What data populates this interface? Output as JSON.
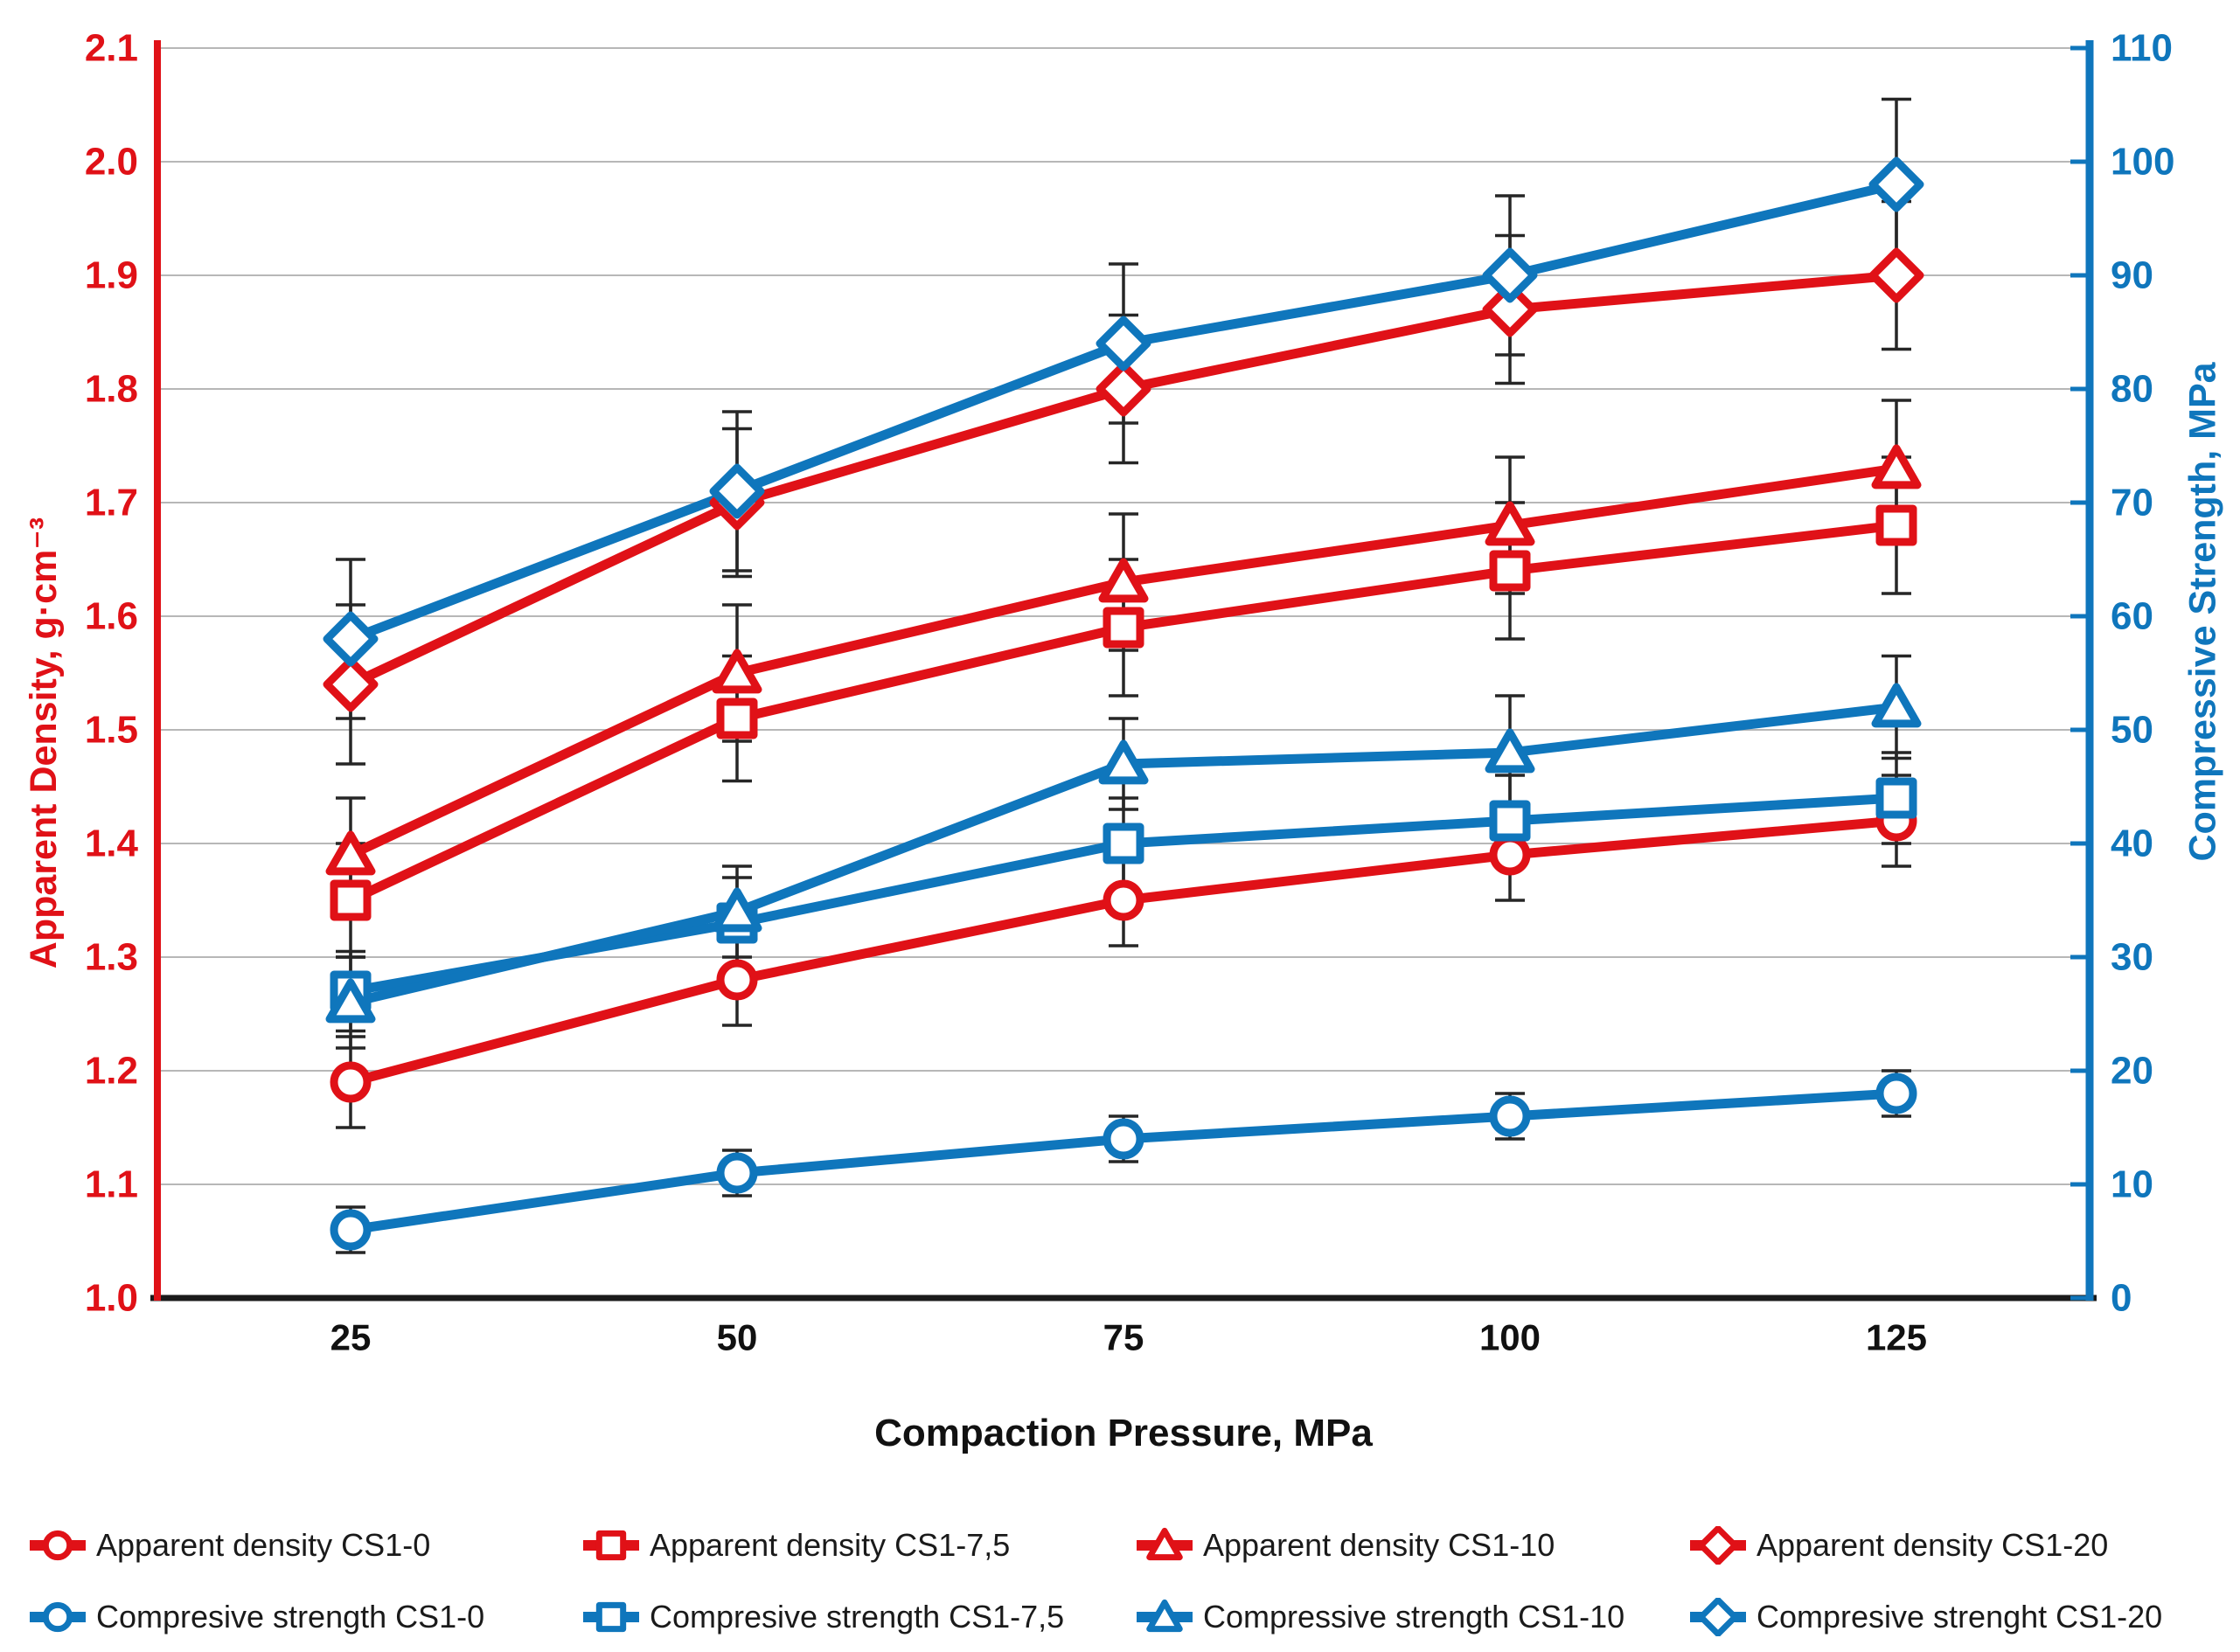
{
  "chart_data": {
    "type": "line",
    "title": "",
    "x_title": "Compaction Pressure, MPa",
    "categories": [
      "25",
      "50",
      "75",
      "100",
      "125"
    ],
    "grid": true,
    "legend_position": "bottom",
    "colors": {
      "red": "#e01117",
      "blue": "#0f76bc",
      "grid": "#b7b7b7",
      "axis_black": "#1a1a1a",
      "error_bar": "#262626",
      "text": "#1a1a1a"
    },
    "left_axis": {
      "title": "Apparent Density, g·cm⁻³",
      "color": "#e01117",
      "min": 1.0,
      "max": 2.1,
      "step": 0.1,
      "tick_labels": [
        "1.0",
        "1.1",
        "1.2",
        "1.3",
        "1.4",
        "1.5",
        "1.6",
        "1.7",
        "1.8",
        "1.9",
        "2.0",
        "2.1"
      ]
    },
    "right_axis": {
      "title": "Compressive Strength, MPa",
      "color": "#0f76bc",
      "min": 0,
      "max": 110,
      "step": 10,
      "tick_labels": [
        "0",
        "10",
        "20",
        "30",
        "40",
        "50",
        "60",
        "70",
        "80",
        "90",
        "100",
        "110"
      ]
    },
    "series": [
      {
        "name": "Apparent density CS1-0",
        "axis": "left",
        "color": "red",
        "marker": "circle",
        "values": [
          1.19,
          1.28,
          1.35,
          1.39,
          1.42
        ],
        "errors": [
          0.04,
          0.04,
          0.04,
          0.04,
          0.04
        ]
      },
      {
        "name": "Apparent density CS1-7,5",
        "axis": "left",
        "color": "red",
        "marker": "square",
        "values": [
          1.35,
          1.51,
          1.59,
          1.64,
          1.68
        ],
        "errors": [
          0.05,
          0.055,
          0.06,
          0.06,
          0.06
        ]
      },
      {
        "name": "Apparent density CS1-10",
        "axis": "left",
        "color": "red",
        "marker": "triangle",
        "values": [
          1.39,
          1.55,
          1.63,
          1.68,
          1.73
        ],
        "errors": [
          0.05,
          0.06,
          0.06,
          0.06,
          0.06
        ]
      },
      {
        "name": "Apparent density CS1-20",
        "axis": "left",
        "color": "red",
        "marker": "diamond",
        "values": [
          1.54,
          1.7,
          1.8,
          1.87,
          1.9
        ],
        "errors": [
          0.07,
          0.065,
          0.065,
          0.065,
          0.065
        ]
      },
      {
        "name": "Compresive strength CS1-0",
        "axis": "right",
        "color": "blue",
        "marker": "circle",
        "values": [
          6,
          11,
          14,
          16,
          18
        ],
        "errors": [
          2,
          2,
          2,
          2,
          2
        ]
      },
      {
        "name": "Compresive strength CS1-7,5",
        "axis": "right",
        "color": "blue",
        "marker": "square",
        "values": [
          27,
          33,
          40,
          42,
          44
        ],
        "errors": [
          3.5,
          4,
          4,
          4,
          4
        ]
      },
      {
        "name": "Compressive strength CS1-10",
        "axis": "right",
        "color": "blue",
        "marker": "triangle",
        "values": [
          26,
          34,
          47,
          48,
          52
        ],
        "errors": [
          4,
          4,
          4,
          5,
          4.5
        ]
      },
      {
        "name": "Compresive strenght CS1-20",
        "axis": "right",
        "color": "blue",
        "marker": "diamond",
        "values": [
          58,
          71,
          84,
          90,
          98
        ],
        "errors": [
          7,
          7,
          7,
          7,
          7.5
        ]
      }
    ],
    "legend_rows": [
      [
        0,
        1,
        2,
        3
      ],
      [
        4,
        5,
        6,
        7
      ]
    ]
  }
}
